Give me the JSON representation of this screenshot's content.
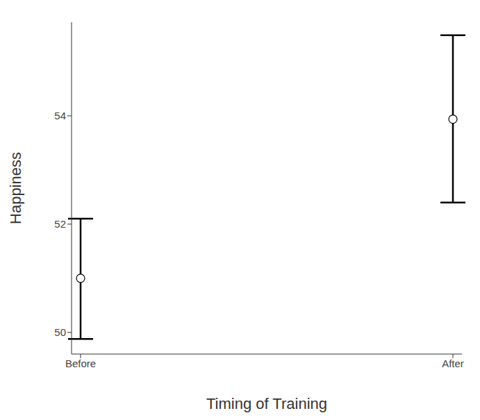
{
  "chart_data": {
    "type": "scatter",
    "categories": [
      "Before",
      "After"
    ],
    "values": [
      51.0,
      53.94
    ],
    "error_low": [
      49.88,
      52.4
    ],
    "error_high": [
      52.1,
      55.49
    ],
    "xlabel": "Timing of Training",
    "ylabel": "Happiness",
    "ylim": [
      49.6,
      55.73
    ],
    "yticks": [
      50,
      52,
      54
    ],
    "color": "#000000",
    "marker": "circle",
    "grid": false
  }
}
